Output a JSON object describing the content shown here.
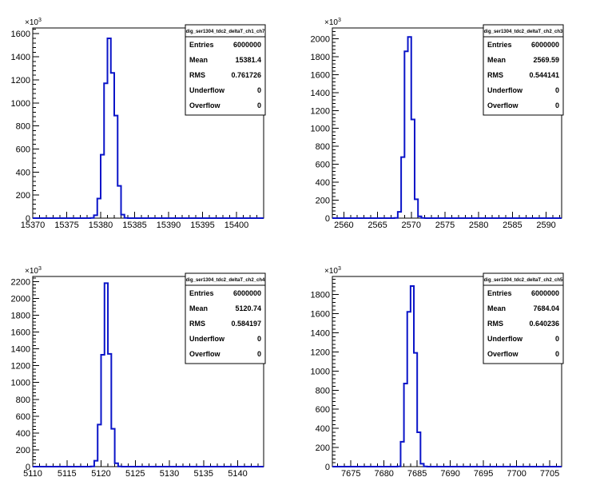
{
  "chart_data": [
    {
      "type": "histogram",
      "title": "dig_ser1304_tdc2_deltaT_ch1_ch7",
      "y_exponent_label": "×10³",
      "xlim": [
        15370,
        15404
      ],
      "ylim": [
        0,
        1650
      ],
      "x_ticks": [
        15370,
        15375,
        15380,
        15385,
        15390,
        15395,
        15400
      ],
      "y_ticks": [
        0,
        200,
        400,
        600,
        800,
        1000,
        1200,
        1400,
        1600
      ],
      "bin_width": 0.5,
      "x": [
        15378.5,
        15379,
        15379.5,
        15380,
        15380.5,
        15381,
        15381.5,
        15382,
        15382.5,
        15383,
        15383.5
      ],
      "values": [
        2,
        25,
        170,
        550,
        1170,
        1560,
        1260,
        890,
        280,
        30,
        2
      ],
      "stats": [
        {
          "label": "Entries",
          "value": "6000000"
        },
        {
          "label": "Mean",
          "value": "15381.4"
        },
        {
          "label": "RMS",
          "value": "0.761726"
        },
        {
          "label": "Underflow",
          "value": "0"
        },
        {
          "label": "Overflow",
          "value": "0"
        }
      ],
      "line_color": "#0a14c8"
    },
    {
      "type": "histogram",
      "title": "dig_ser1304_tdc2_deltaT_ch2_ch3",
      "y_exponent_label": "×10³",
      "xlim": [
        2558.3,
        2592.3
      ],
      "ylim": [
        0,
        2120
      ],
      "x_ticks": [
        2560,
        2565,
        2570,
        2575,
        2580,
        2585,
        2590
      ],
      "y_ticks": [
        0,
        200,
        400,
        600,
        800,
        1000,
        1200,
        1400,
        1600,
        1800,
        2000
      ],
      "bin_width": 0.5,
      "x": [
        2567.5,
        2568,
        2568.5,
        2569,
        2569.5,
        2570,
        2570.5,
        2571,
        2571.5
      ],
      "values": [
        2,
        70,
        680,
        1860,
        2020,
        1100,
        210,
        20,
        2
      ],
      "stats": [
        {
          "label": "Entries",
          "value": "6000000"
        },
        {
          "label": "Mean",
          "value": "2569.59"
        },
        {
          "label": "RMS",
          "value": "0.544141"
        },
        {
          "label": "Underflow",
          "value": "0"
        },
        {
          "label": "Overflow",
          "value": "0"
        }
      ],
      "line_color": "#0a14c8"
    },
    {
      "type": "histogram",
      "title": "dig_ser1304_tdc2_deltaT_ch2_ch4",
      "y_exponent_label": "×10³",
      "xlim": [
        5110,
        5143.8
      ],
      "ylim": [
        0,
        2260
      ],
      "x_ticks": [
        5110,
        5115,
        5120,
        5125,
        5130,
        5135,
        5140
      ],
      "y_ticks": [
        0,
        200,
        400,
        600,
        800,
        1000,
        1200,
        1400,
        1600,
        1800,
        2000,
        2200
      ],
      "bin_width": 0.5,
      "x": [
        5118.5,
        5119,
        5119.5,
        5120,
        5120.5,
        5121,
        5121.5,
        5122,
        5122.5
      ],
      "values": [
        2,
        70,
        500,
        1330,
        2180,
        1340,
        450,
        40,
        2
      ],
      "stats": [
        {
          "label": "Entries",
          "value": "6000000"
        },
        {
          "label": "Mean",
          "value": "5120.74"
        },
        {
          "label": "RMS",
          "value": "0.584197"
        },
        {
          "label": "Underflow",
          "value": "0"
        },
        {
          "label": "Overflow",
          "value": "0"
        }
      ],
      "line_color": "#0a14c8"
    },
    {
      "type": "histogram",
      "title": "dig_ser1304_tdc2_deltaT_ch2_ch5",
      "y_exponent_label": "×10³",
      "xlim": [
        7672.2,
        7706.8
      ],
      "ylim": [
        0,
        1990
      ],
      "x_ticks": [
        7675,
        7680,
        7685,
        7690,
        7695,
        7700,
        7705
      ],
      "y_ticks": [
        0,
        200,
        400,
        600,
        800,
        1000,
        1200,
        1400,
        1600,
        1800
      ],
      "bin_width": 0.5,
      "x": [
        7682,
        7682.5,
        7683,
        7683.5,
        7684,
        7684.5,
        7685,
        7685.5,
        7686
      ],
      "values": [
        2,
        260,
        870,
        1620,
        1890,
        1190,
        360,
        30,
        2
      ],
      "stats": [
        {
          "label": "Entries",
          "value": "6000000"
        },
        {
          "label": "Mean",
          "value": "7684.04"
        },
        {
          "label": "RMS",
          "value": "0.640236"
        },
        {
          "label": "Underflow",
          "value": "0"
        },
        {
          "label": "Overflow",
          "value": "0"
        }
      ],
      "line_color": "#0a14c8"
    }
  ]
}
